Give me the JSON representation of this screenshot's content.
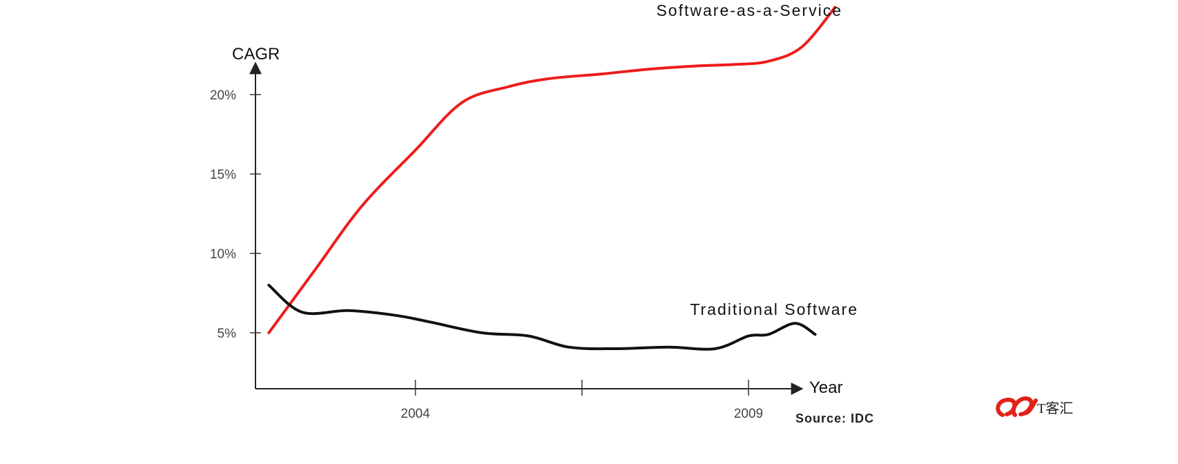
{
  "chart_data": {
    "type": "line",
    "ylabel": "CAGR",
    "xlabel": "Year",
    "ylim": [
      1.5,
      22
    ],
    "xlim": [
      2001.6,
      2010.4
    ],
    "y_ticks": [
      {
        "value": 5,
        "label": "5%"
      },
      {
        "value": 10,
        "label": "10%"
      },
      {
        "value": 15,
        "label": "15%"
      },
      {
        "value": 20,
        "label": "20%"
      }
    ],
    "x_ticks": [
      {
        "value": 2004,
        "label": "2004"
      },
      {
        "value": 2006.5,
        "label": ""
      },
      {
        "value": 2009,
        "label": "2009"
      }
    ],
    "series": [
      {
        "name": "Software-as-a-Service",
        "color": "#ee1c1c",
        "x": [
          2001.8,
          2002.5,
          2003.2,
          2004.0,
          2004.7,
          2005.4,
          2006.0,
          2006.8,
          2007.5,
          2008.2,
          2008.8,
          2009.3,
          2009.8,
          2010.3
        ],
        "y": [
          5.0,
          9.0,
          13.0,
          16.5,
          19.5,
          20.5,
          21.0,
          21.3,
          21.6,
          21.8,
          21.9,
          22.1,
          23.0,
          25.5
        ]
      },
      {
        "name": "Traditional Software",
        "color": "#111111",
        "x": [
          2001.8,
          2002.3,
          2003.0,
          2003.7,
          2004.2,
          2005.0,
          2005.7,
          2006.3,
          2007.0,
          2007.8,
          2008.5,
          2009.0,
          2009.3,
          2009.7,
          2010.0
        ],
        "y": [
          8.0,
          6.3,
          6.4,
          6.1,
          5.7,
          5.0,
          4.8,
          4.1,
          4.0,
          4.1,
          4.0,
          4.8,
          4.9,
          5.6,
          4.9
        ]
      }
    ],
    "annotations": {
      "source": "Source: IDC"
    }
  },
  "watermark": {
    "text": "T客汇",
    "logo_color": "#e2231a"
  }
}
